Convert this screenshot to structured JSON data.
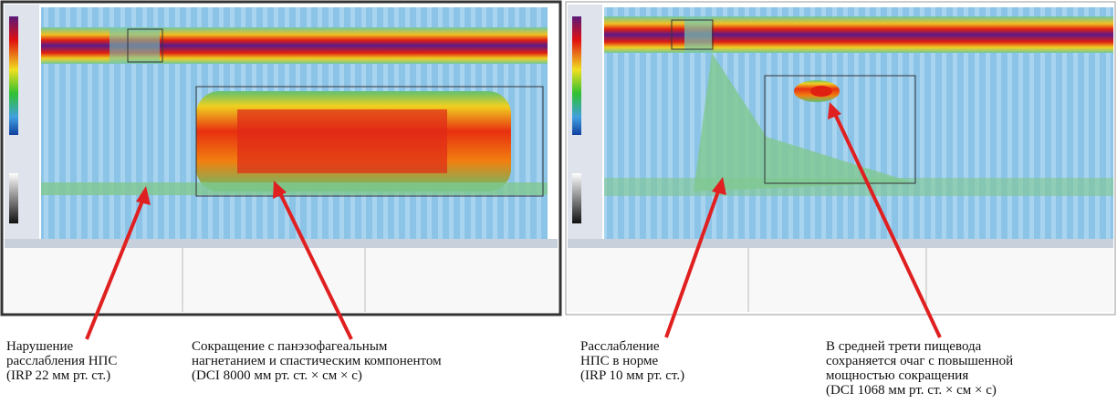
{
  "captions": [
    {
      "lines": [
        "Нарушение",
        "расслабления НПС",
        "(IRP 22 мм рт. ст.)"
      ]
    },
    {
      "lines": [
        "Сокращение с панэзофагеальным",
        "нагнетанием и спастическим компонентом",
        "(DCI 8000 мм рт. ст. × см × с)"
      ]
    },
    {
      "lines": [
        "Расслабление",
        "НПС в норме",
        "(IRP 10 мм рт. ст.)"
      ]
    },
    {
      "lines": [
        "В средней трети пищевода",
        "сохраняется очаг с повышенной",
        "мощностью сокращения",
        "(DCI 1068 мм рт. ст. × см × с)"
      ]
    }
  ]
}
